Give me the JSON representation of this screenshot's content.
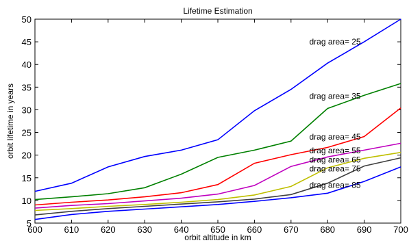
{
  "chart_data": {
    "type": "line",
    "title": "Lifetime Estimation",
    "xlabel": "orbit altitude in km",
    "ylabel": "orbit lifetime in years",
    "xlim": [
      600,
      700
    ],
    "ylim": [
      5,
      50
    ],
    "x_ticks": [
      600,
      610,
      620,
      630,
      640,
      650,
      660,
      670,
      680,
      690,
      700
    ],
    "y_ticks": [
      5,
      10,
      15,
      20,
      25,
      30,
      35,
      40,
      45,
      50
    ],
    "grid": false,
    "legend": "none",
    "x": [
      600,
      610,
      620,
      630,
      640,
      650,
      660,
      670,
      680,
      690,
      700
    ],
    "series": [
      {
        "name": "drag area= 25",
        "color": "#0000ff",
        "values": [
          12.0,
          13.8,
          17.4,
          19.7,
          21.1,
          23.4,
          29.8,
          34.5,
          40.3,
          45.0,
          50.0
        ]
      },
      {
        "name": "drag area= 35",
        "color": "#008000",
        "values": [
          10.2,
          10.8,
          11.5,
          12.8,
          15.8,
          19.5,
          21.1,
          23.1,
          30.3,
          33.2,
          35.8
        ]
      },
      {
        "name": "drag area= 45",
        "color": "#ff0000",
        "values": [
          9.0,
          9.6,
          10.1,
          10.8,
          11.7,
          13.5,
          18.2,
          20.1,
          21.7,
          24.1,
          30.4
        ]
      },
      {
        "name": "drag area= 55",
        "color": "#bf00bf",
        "values": [
          8.3,
          8.9,
          9.3,
          9.9,
          10.5,
          11.4,
          13.3,
          17.5,
          19.6,
          21.1,
          22.6
        ]
      },
      {
        "name": "drag area= 65",
        "color": "#bfbf00",
        "values": [
          7.8,
          8.2,
          8.7,
          9.1,
          9.6,
          10.2,
          11.2,
          13.1,
          17.2,
          19.3,
          20.6
        ]
      },
      {
        "name": "drag area= 75",
        "color": "#404040",
        "values": [
          6.8,
          7.6,
          8.2,
          8.7,
          9.2,
          9.7,
          10.3,
          11.3,
          13.8,
          17.6,
          19.4
        ]
      },
      {
        "name": "drag area= 85",
        "color": "#0000ff",
        "values": [
          5.8,
          6.9,
          7.6,
          8.1,
          8.6,
          9.1,
          9.8,
          10.6,
          11.6,
          14.2,
          17.4
        ]
      }
    ],
    "annotations": [
      {
        "text": "drag area= 25",
        "x": 675,
        "y": 45
      },
      {
        "text": "drag area= 35",
        "x": 675,
        "y": 33
      },
      {
        "text": "drag area= 45",
        "x": 675,
        "y": 24
      },
      {
        "text": "drag area= 55",
        "x": 675,
        "y": 21
      },
      {
        "text": "drag area= 65",
        "x": 675,
        "y": 19
      },
      {
        "text": "drag area= 75",
        "x": 675,
        "y": 17
      },
      {
        "text": "drag area= 85",
        "x": 675,
        "y": 13.4
      }
    ]
  }
}
